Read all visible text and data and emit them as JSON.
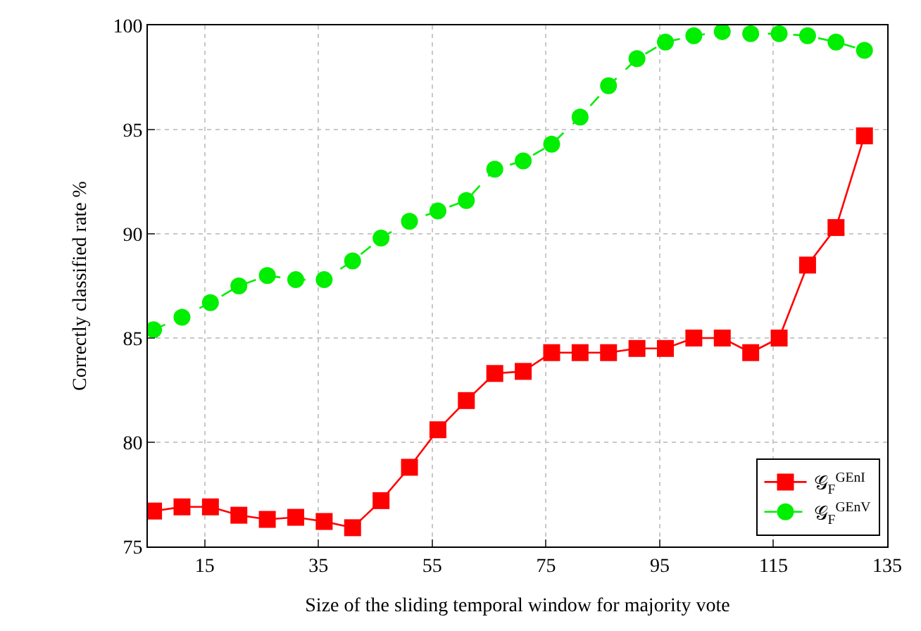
{
  "chart_data": {
    "type": "line",
    "xlabel": "Size of the sliding temporal window for majority vote",
    "ylabel": "Correctly classified rate %",
    "x": [
      6,
      11,
      16,
      21,
      26,
      31,
      36,
      41,
      46,
      51,
      56,
      61,
      66,
      71,
      76,
      81,
      86,
      91,
      96,
      101,
      106,
      111,
      116,
      121,
      126,
      131
    ],
    "series": [
      {
        "name": "𝒢$_{F}$$^{GEnI}$",
        "color": "#ff0000",
        "marker": "square",
        "line_style": "solid",
        "values": [
          76.7,
          76.9,
          76.9,
          76.5,
          76.3,
          76.4,
          76.2,
          75.9,
          77.2,
          78.8,
          80.6,
          82.0,
          83.3,
          83.4,
          84.3,
          84.3,
          84.3,
          84.5,
          84.5,
          85.0,
          85.0,
          84.3,
          85.0,
          88.5,
          90.3,
          94.7
        ]
      },
      {
        "name": "𝒢$_{F}$$^{GEnV}$",
        "color": "#00ee00",
        "marker": "circle",
        "line_style": "dashed",
        "values": [
          85.4,
          86.0,
          86.7,
          87.5,
          88.0,
          87.8,
          87.8,
          88.7,
          89.8,
          90.6,
          91.1,
          91.6,
          93.1,
          93.5,
          94.3,
          95.6,
          97.1,
          98.4,
          99.2,
          99.5,
          99.7,
          99.6,
          99.6,
          99.5,
          99.2,
          98.8
        ]
      }
    ],
    "xlim": [
      5,
      135
    ],
    "xticks": [
      15,
      35,
      55,
      75,
      95,
      115,
      135
    ],
    "ylim": [
      75,
      100
    ],
    "yticks": [
      75,
      80,
      85,
      90,
      95,
      100
    ],
    "grid": true,
    "legend": "bottom right"
  }
}
